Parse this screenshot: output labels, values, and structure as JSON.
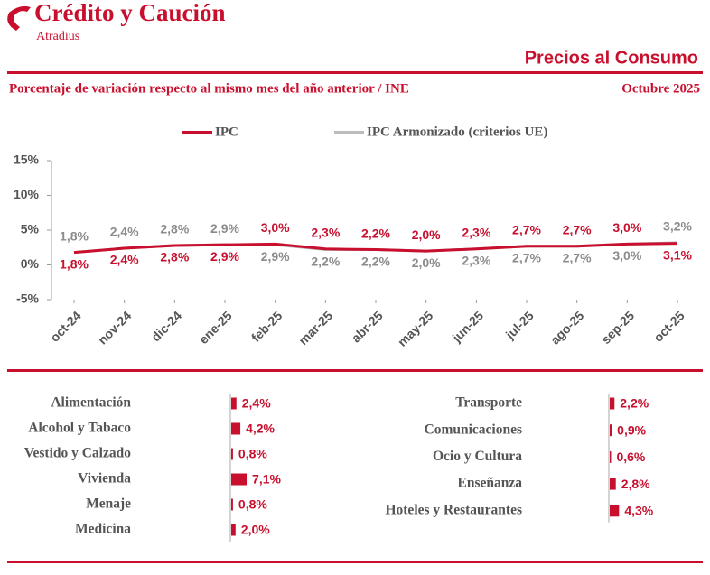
{
  "header": {
    "brand": "Crédito y Caución",
    "brand_sub": "Atradius",
    "title": "Precios al Consumo",
    "subtitle": "Porcentaje de variación respecto al mismo mes del año anterior / INE",
    "date": "Octubre  2025"
  },
  "chart_data": [
    {
      "type": "line",
      "categories": [
        "oct-24",
        "nov-24",
        "dic-24",
        "ene-25",
        "feb-25",
        "mar-25",
        "abr-25",
        "may-25",
        "jun-25",
        "jul-25",
        "ago-25",
        "sep-25",
        "oct-25"
      ],
      "series": [
        {
          "name": "IPC",
          "color": "#c8102e",
          "values": [
            1.8,
            2.4,
            2.8,
            2.9,
            3.0,
            2.3,
            2.2,
            2.0,
            2.3,
            2.7,
            2.7,
            3.0,
            3.1
          ],
          "value_labels": [
            "1,8%",
            "2,4%",
            "2,8%",
            "2,9%",
            "3,0%",
            "2,3%",
            "2,2%",
            "2,0%",
            "2,3%",
            "2,7%",
            "2,7%",
            "3,0%",
            "3,1%"
          ]
        },
        {
          "name": "IPC Armonizado (criterios UE)",
          "color": "#bdbdbd",
          "values": [
            1.8,
            2.4,
            2.8,
            2.9,
            2.9,
            2.2,
            2.2,
            2.0,
            2.3,
            2.7,
            2.7,
            3.0,
            3.2
          ],
          "value_labels": [
            "1,8%",
            "2,4%",
            "2,8%",
            "2,9%",
            "2,9%",
            "2,2%",
            "2,2%",
            "2,0%",
            "2,3%",
            "2,7%",
            "2,7%",
            "3,0%",
            "3,2%"
          ]
        }
      ],
      "ylim": [
        -5,
        15
      ],
      "yticks": [
        {
          "value": -5,
          "label": "-5%"
        },
        {
          "value": 0,
          "label": "0%"
        },
        {
          "value": 5,
          "label": "5%"
        },
        {
          "value": 10,
          "label": "10%"
        },
        {
          "value": 15,
          "label": "15%"
        }
      ],
      "legend": "top"
    },
    {
      "type": "bar",
      "color": "#c8102e",
      "categories": [
        "Alimentación",
        "Alcohol y Tabaco",
        "Vestido y Calzado",
        "Vivienda",
        "Menaje",
        "Medicina"
      ],
      "values": [
        2.4,
        4.2,
        0.8,
        7.1,
        0.8,
        2.0
      ],
      "value_labels": [
        "2,4%",
        "4,2%",
        "0,8%",
        "7,1%",
        "0,8%",
        "2,0%"
      ]
    },
    {
      "type": "bar",
      "color": "#c8102e",
      "categories": [
        "Transporte",
        "Comunicaciones",
        "Ocio y Cultura",
        "Enseñanza",
        "Hoteles y Restaurantes"
      ],
      "values": [
        2.2,
        0.9,
        0.6,
        2.8,
        4.3
      ],
      "value_labels": [
        "2,2%",
        "0,9%",
        "0,6%",
        "2,8%",
        "4,3%"
      ]
    }
  ]
}
